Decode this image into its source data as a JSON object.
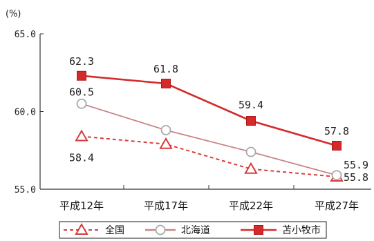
{
  "chart_data": {
    "type": "line",
    "y_unit": "(%)",
    "categories": [
      "平成12年",
      "平成17年",
      "平成22年",
      "平成27年"
    ],
    "y_ticks": [
      "65.0",
      "60.0",
      "55.0"
    ],
    "ylim": [
      55,
      65
    ],
    "grid": false,
    "legend_position": "bottom",
    "series": [
      {
        "name": "全国",
        "values": [
          58.4,
          57.9,
          56.3,
          55.8
        ],
        "labels": [
          "58.4",
          null,
          null,
          "55.8"
        ],
        "color": "#d93a3a",
        "line_style": "dashed",
        "marker": "open-triangle"
      },
      {
        "name": "北海道",
        "values": [
          60.5,
          58.8,
          57.4,
          55.9
        ],
        "labels": [
          "60.5",
          null,
          null,
          "55.9"
        ],
        "color": "#c98585",
        "line_style": "solid",
        "marker": "open-circle"
      },
      {
        "name": "苫小牧市",
        "values": [
          62.3,
          61.8,
          59.4,
          57.8
        ],
        "labels": [
          "62.3",
          "61.8",
          "59.4",
          "57.8"
        ],
        "color": "#d42a2a",
        "line_style": "solid",
        "marker": "filled-square"
      }
    ]
  }
}
